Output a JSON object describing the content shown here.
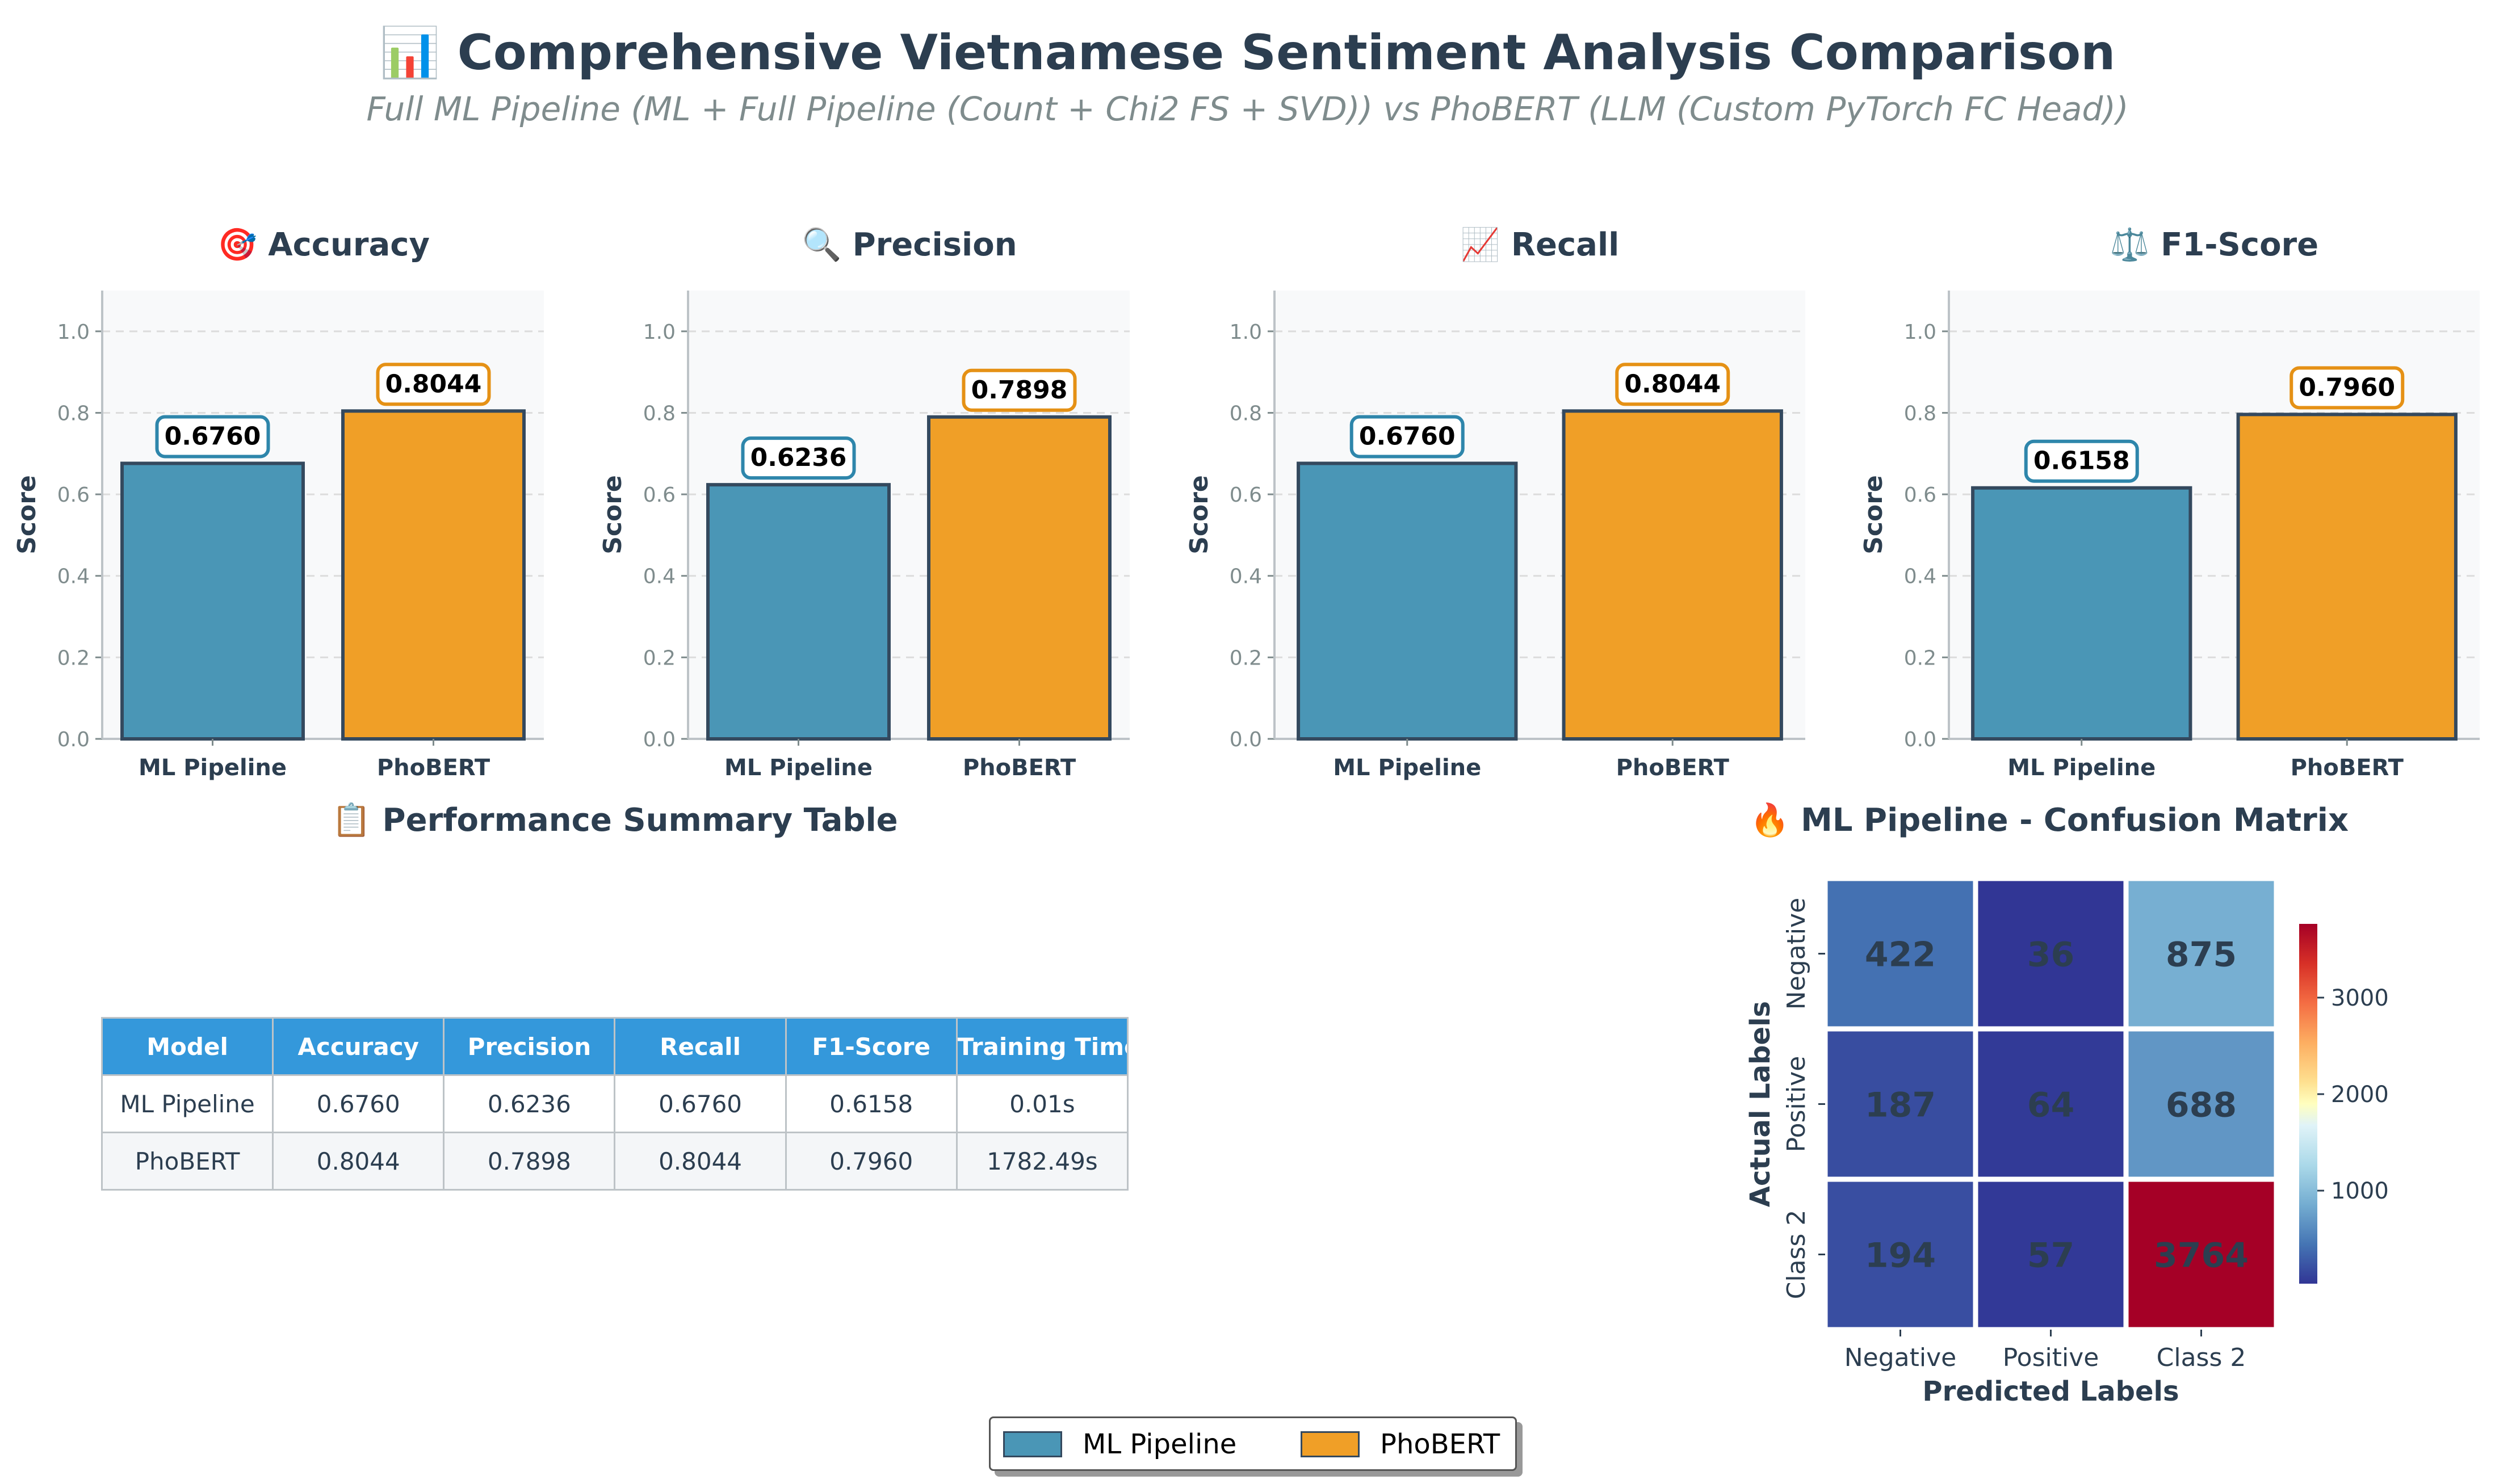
{
  "title": "📊 Comprehensive Vietnamese Sentiment Analysis Comparison",
  "subtitle": "Full ML Pipeline (ML + Full Pipeline (Count + Chi2 FS + SVD)) vs PhoBERT (LLM (Custom PyTorch FC Head))",
  "colors": {
    "ml": "#4a96b6",
    "phobert": "#f09f27",
    "ml_label_border": "#2e86ab",
    "phobert_label_border": "#e59115"
  },
  "chart_data": [
    {
      "type": "bar",
      "title": "🎯 Accuracy",
      "categories": [
        "ML Pipeline",
        "PhoBERT"
      ],
      "values": [
        0.676,
        0.8044
      ],
      "value_labels": [
        "0.6760",
        "0.8044"
      ],
      "ylabel": "Score",
      "ylim": [
        0,
        1.1
      ],
      "yticks": [
        "0.0",
        "0.2",
        "0.4",
        "0.6",
        "0.8",
        "1.0"
      ],
      "grid": true
    },
    {
      "type": "bar",
      "title": "🔍 Precision",
      "categories": [
        "ML Pipeline",
        "PhoBERT"
      ],
      "values": [
        0.6236,
        0.7898
      ],
      "value_labels": [
        "0.6236",
        "0.7898"
      ],
      "ylabel": "Score",
      "ylim": [
        0,
        1.1
      ],
      "yticks": [
        "0.0",
        "0.2",
        "0.4",
        "0.6",
        "0.8",
        "1.0"
      ],
      "grid": true
    },
    {
      "type": "bar",
      "title": "📈 Recall",
      "categories": [
        "ML Pipeline",
        "PhoBERT"
      ],
      "values": [
        0.676,
        0.8044
      ],
      "value_labels": [
        "0.6760",
        "0.8044"
      ],
      "ylabel": "Score",
      "ylim": [
        0,
        1.1
      ],
      "yticks": [
        "0.0",
        "0.2",
        "0.4",
        "0.6",
        "0.8",
        "1.0"
      ],
      "grid": true
    },
    {
      "type": "bar",
      "title": "⚖️ F1-Score",
      "categories": [
        "ML Pipeline",
        "PhoBERT"
      ],
      "values": [
        0.6158,
        0.796
      ],
      "value_labels": [
        "0.6158",
        "0.7960"
      ],
      "ylabel": "Score",
      "ylim": [
        0,
        1.1
      ],
      "yticks": [
        "0.0",
        "0.2",
        "0.4",
        "0.6",
        "0.8",
        "1.0"
      ],
      "grid": true
    },
    {
      "type": "heatmap",
      "title": "🔥 ML Pipeline - Confusion Matrix",
      "xlabel": "Predicted Labels",
      "ylabel": "Actual Labels",
      "x_categories": [
        "Negative",
        "Positive",
        "Class 2"
      ],
      "y_categories": [
        "Negative",
        "Positive",
        "Class 2"
      ],
      "values": [
        [
          422,
          36,
          875
        ],
        [
          187,
          64,
          688
        ],
        [
          194,
          57,
          3764
        ]
      ],
      "colorbar_ticks": [
        "1000",
        "2000",
        "3000"
      ],
      "colorbar_range": [
        36,
        3764
      ],
      "colormap": "RdYlBu_r"
    }
  ],
  "table": {
    "title": "📋 Performance Summary Table",
    "headers": [
      "Model",
      "Accuracy",
      "Precision",
      "Recall",
      "F1-Score",
      "Training Time"
    ],
    "rows": [
      [
        "ML Pipeline",
        "0.6760",
        "0.6236",
        "0.6760",
        "0.6158",
        "0.01s"
      ],
      [
        "PhoBERT",
        "0.8044",
        "0.7898",
        "0.8044",
        "0.7960",
        "1782.49s"
      ]
    ]
  },
  "legend": {
    "items": [
      "ML Pipeline",
      "PhoBERT"
    ],
    "placement": "bottom-center"
  }
}
